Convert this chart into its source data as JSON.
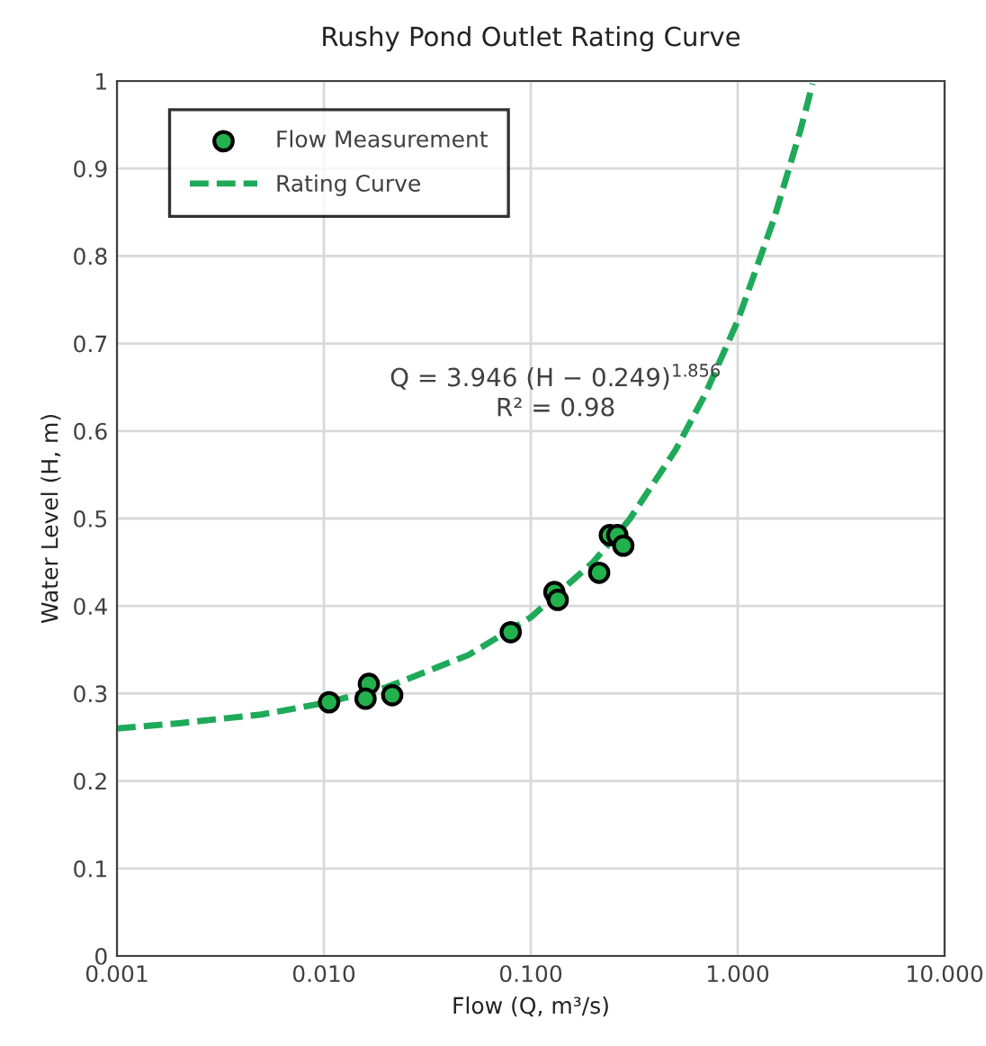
{
  "chart_data": {
    "type": "scatter",
    "title": "Rushy Pond Outlet Rating Curve",
    "xlabel": "Flow (Q, m³/s)",
    "ylabel": "Water Level (H, m)",
    "series": [
      {
        "name": "Flow Measurement",
        "color": "#22b14c",
        "marker": "circle",
        "x": [
          0.0106,
          0.0165,
          0.0159,
          0.0214,
          0.08,
          0.13,
          0.135,
          0.214,
          0.241,
          0.262,
          0.28
        ],
        "values": [
          0.29,
          0.311,
          0.294,
          0.298,
          0.37,
          0.416,
          0.407,
          0.438,
          0.481,
          0.481,
          0.469
        ]
      },
      {
        "name": "Rating Curve",
        "type": "line",
        "color": "#1faa59",
        "line_style": "dashed",
        "marker": "none",
        "x": [
          0.001,
          0.002,
          0.005,
          0.01,
          0.02,
          0.05,
          0.1,
          0.2,
          0.3,
          0.5,
          0.7,
          1.0,
          1.5,
          2.0,
          2.2,
          2.3
        ],
        "values": [
          0.26,
          0.266,
          0.276,
          0.289,
          0.307,
          0.344,
          0.387,
          0.45,
          0.499,
          0.578,
          0.643,
          0.726,
          0.843,
          0.942,
          0.979,
          0.997
        ]
      }
    ],
    "log": "x",
    "xlim": [
      0.001,
      10
    ],
    "xticks": [
      0.001,
      {
        "value": 0.01,
        "label": "0.010"
      },
      {
        "value": 0.1,
        "label": "0.100"
      },
      {
        "value": 1,
        "label": "1.000"
      },
      {
        "value": 10,
        "label": "10.000"
      }
    ],
    "ylim": [
      0,
      1
    ],
    "yticks": [
      0,
      0.1,
      0.2,
      0.3,
      0.4,
      0.5,
      0.6,
      0.7,
      0.8,
      0.9,
      1
    ],
    "grid": true,
    "legend": "top left",
    "annotations": [
      "Q = 3.946 (H − 0.249)$^{1.856}$",
      "R² = 0.98"
    ]
  }
}
